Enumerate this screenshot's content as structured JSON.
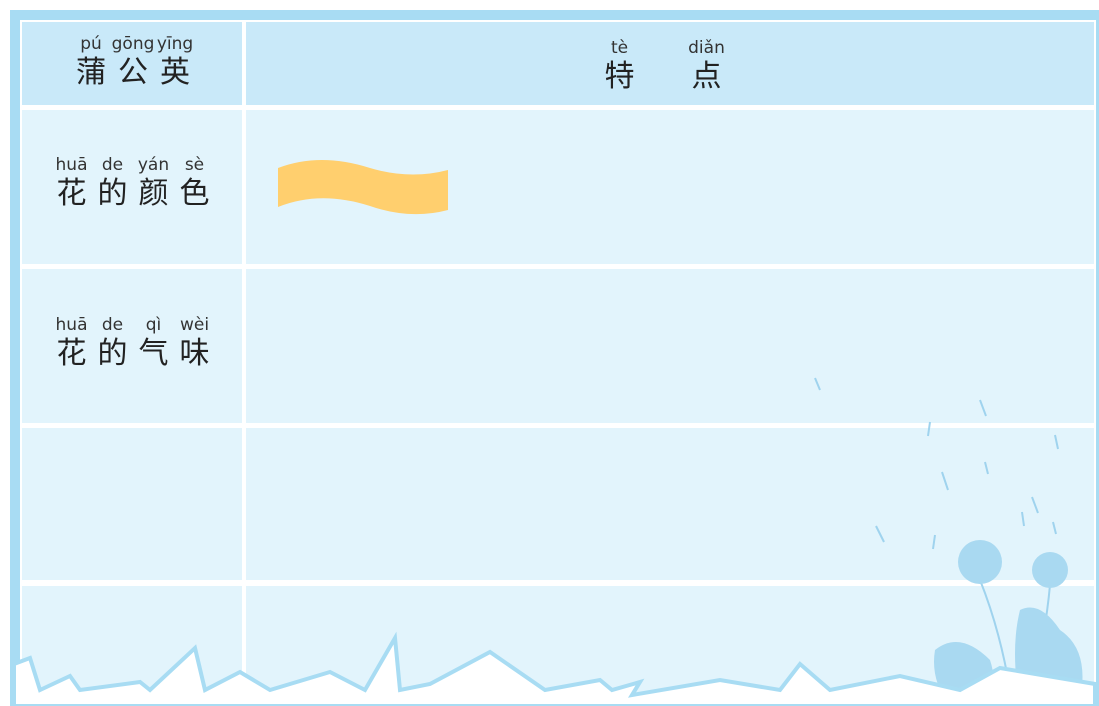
{
  "header": {
    "columns": [
      {
        "ruby": [
          {
            "pinyin": "pú",
            "hanzi": "蒲"
          },
          {
            "pinyin": "gōng",
            "hanzi": "公"
          },
          {
            "pinyin": "yīng",
            "hanzi": "英"
          }
        ]
      },
      {
        "ruby": [
          {
            "pinyin": "tè",
            "hanzi": "特"
          },
          {
            "pinyin": "diǎn",
            "hanzi": "点"
          }
        ]
      }
    ]
  },
  "rows": [
    {
      "label": {
        "ruby": [
          {
            "pinyin": "huā",
            "hanzi": "花"
          },
          {
            "pinyin": "de",
            "hanzi": "的"
          },
          {
            "pinyin": "yán",
            "hanzi": "颜"
          },
          {
            "pinyin": "sè",
            "hanzi": "色"
          }
        ]
      }
    },
    {
      "label": {
        "ruby": [
          {
            "pinyin": "huā",
            "hanzi": "花"
          },
          {
            "pinyin": "de",
            "hanzi": "的"
          },
          {
            "pinyin": "qì",
            "hanzi": "气"
          },
          {
            "pinyin": "wèi",
            "hanzi": "味"
          }
        ]
      }
    }
  ]
}
